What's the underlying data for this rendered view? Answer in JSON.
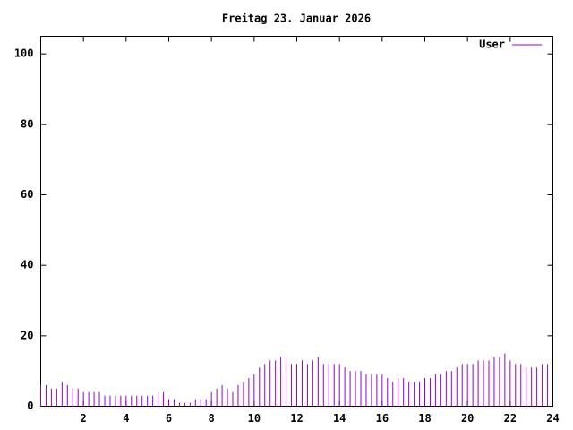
{
  "chart_data": {
    "type": "impulses",
    "title": "Freitag 23. Januar 2026",
    "xlim": [
      0,
      24
    ],
    "xticks": [
      2,
      4,
      6,
      8,
      10,
      12,
      14,
      16,
      18,
      20,
      22,
      24
    ],
    "ylim": [
      0,
      105
    ],
    "yticks": [
      0,
      20,
      40,
      60,
      80,
      100
    ],
    "legend": "top-right",
    "x": [
      0,
      0.25,
      0.5,
      0.75,
      1,
      1.25,
      1.5,
      1.75,
      2,
      2.25,
      2.5,
      2.75,
      3,
      3.25,
      3.5,
      3.75,
      4,
      4.25,
      4.5,
      4.75,
      5,
      5.25,
      5.5,
      5.75,
      6,
      6.25,
      6.5,
      6.75,
      7,
      7.25,
      7.5,
      7.75,
      8,
      8.25,
      8.5,
      8.75,
      9,
      9.25,
      9.5,
      9.75,
      10,
      10.25,
      10.5,
      10.75,
      11,
      11.25,
      11.5,
      11.75,
      12,
      12.25,
      12.5,
      12.75,
      13,
      13.25,
      13.5,
      13.75,
      14,
      14.25,
      14.5,
      14.75,
      15,
      15.25,
      15.5,
      15.75,
      16,
      16.25,
      16.5,
      16.75,
      17,
      17.25,
      17.5,
      17.75,
      18,
      18.25,
      18.5,
      18.75,
      19,
      19.25,
      19.5,
      19.75,
      20,
      20.25,
      20.5,
      20.75,
      21,
      21.25,
      21.5,
      21.75,
      22,
      22.25,
      22.5,
      22.75,
      23,
      23.25,
      23.5,
      23.75
    ],
    "series": [
      {
        "name": "User",
        "color": "#9400d3",
        "values": [
          6,
          6,
          5,
          5,
          7,
          6,
          5,
          5,
          4,
          4,
          4,
          4,
          3,
          3,
          3,
          3,
          3,
          3,
          3,
          3,
          3,
          3,
          4,
          4,
          2,
          2,
          1,
          1,
          1,
          2,
          2,
          2,
          4,
          5,
          6,
          5,
          4,
          6,
          7,
          8,
          9,
          11,
          12,
          13,
          13,
          14,
          14,
          12,
          12,
          13,
          12,
          13,
          14,
          12,
          12,
          12,
          12,
          11,
          10,
          10,
          10,
          9,
          9,
          9,
          9,
          8,
          7,
          8,
          8,
          7,
          7,
          7,
          8,
          8,
          9,
          9,
          10,
          10,
          11,
          12,
          12,
          12,
          13,
          13,
          13,
          14,
          14,
          15,
          13,
          12,
          12,
          11,
          11,
          11,
          12,
          12
        ]
      }
    ]
  }
}
